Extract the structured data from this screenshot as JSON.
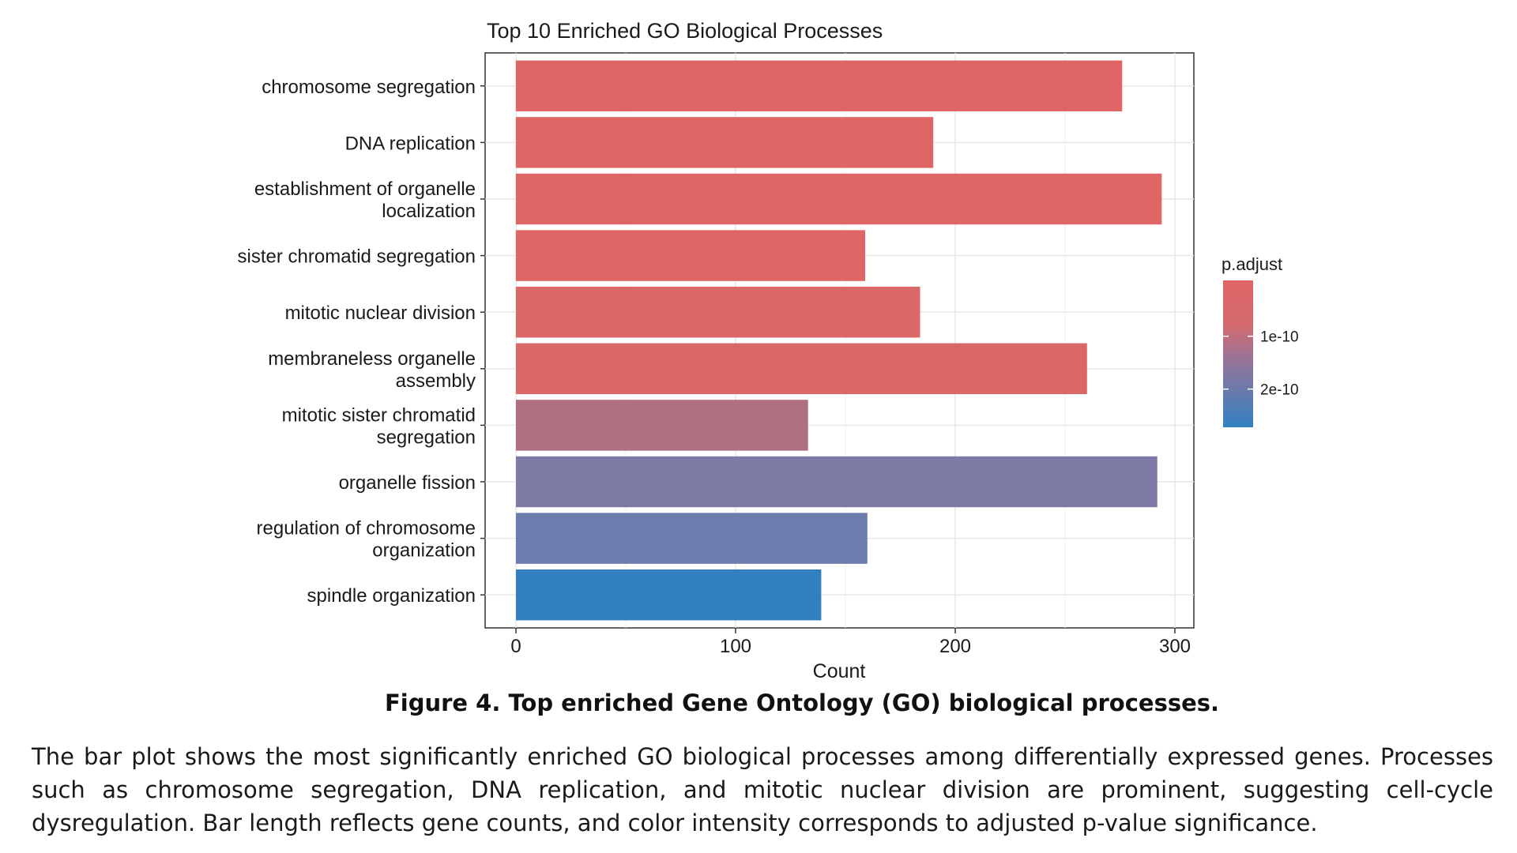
{
  "chart_data": {
    "type": "bar",
    "orientation": "horizontal",
    "title": "Top 10 Enriched GO Biological Processes",
    "xlabel": "Count",
    "ylabel": "",
    "xlim": [
      0,
      310
    ],
    "xticks": [
      0,
      100,
      200,
      300
    ],
    "grid": true,
    "categories": [
      "chromosome segregation",
      "DNA replication",
      "establishment of organelle localization",
      "sister chromatid segregation",
      "mitotic nuclear division",
      "membraneless organelle assembly",
      "mitotic sister chromatid segregation",
      "organelle fission",
      "regulation of chromosome organization",
      "spindle organization"
    ],
    "category_label_lines": [
      [
        "chromosome segregation"
      ],
      [
        "DNA replication"
      ],
      [
        "establishment of organelle",
        "localization"
      ],
      [
        "sister chromatid segregation"
      ],
      [
        "mitotic nuclear division"
      ],
      [
        "membraneless organelle",
        "assembly"
      ],
      [
        "mitotic sister chromatid",
        "segregation"
      ],
      [
        "organelle fission"
      ],
      [
        "regulation of chromosome",
        "organization"
      ],
      [
        "spindle organization"
      ]
    ],
    "values": [
      276,
      190,
      294,
      159,
      184,
      260,
      133,
      292,
      160,
      139
    ],
    "bar_colors": [
      "#e06666",
      "#e06666",
      "#e06666",
      "#e06666",
      "#dc6767",
      "#d96768",
      "#b07082",
      "#7d7ba5",
      "#6b7cad",
      "#3380c0"
    ],
    "legend": {
      "title": "p.adjust",
      "position": "right",
      "tick_labels": [
        "1e-10",
        "2e-10"
      ],
      "tick_fractions": [
        0.38,
        0.74
      ],
      "color_low": "#e06666",
      "color_high": "#3380c0"
    }
  },
  "figure": {
    "caption": "Figure 4. Top enriched Gene Ontology (GO) biological processes.",
    "description": "The bar plot shows the most significantly enriched GO biological processes among differentially expressed genes. Processes such as chromosome segregation, DNA replication, and mitotic nuclear division are prominent, suggesting cell-cycle dysregulation. Bar length reflects gene counts, and color intensity corresponds to adjusted p-value significance."
  }
}
